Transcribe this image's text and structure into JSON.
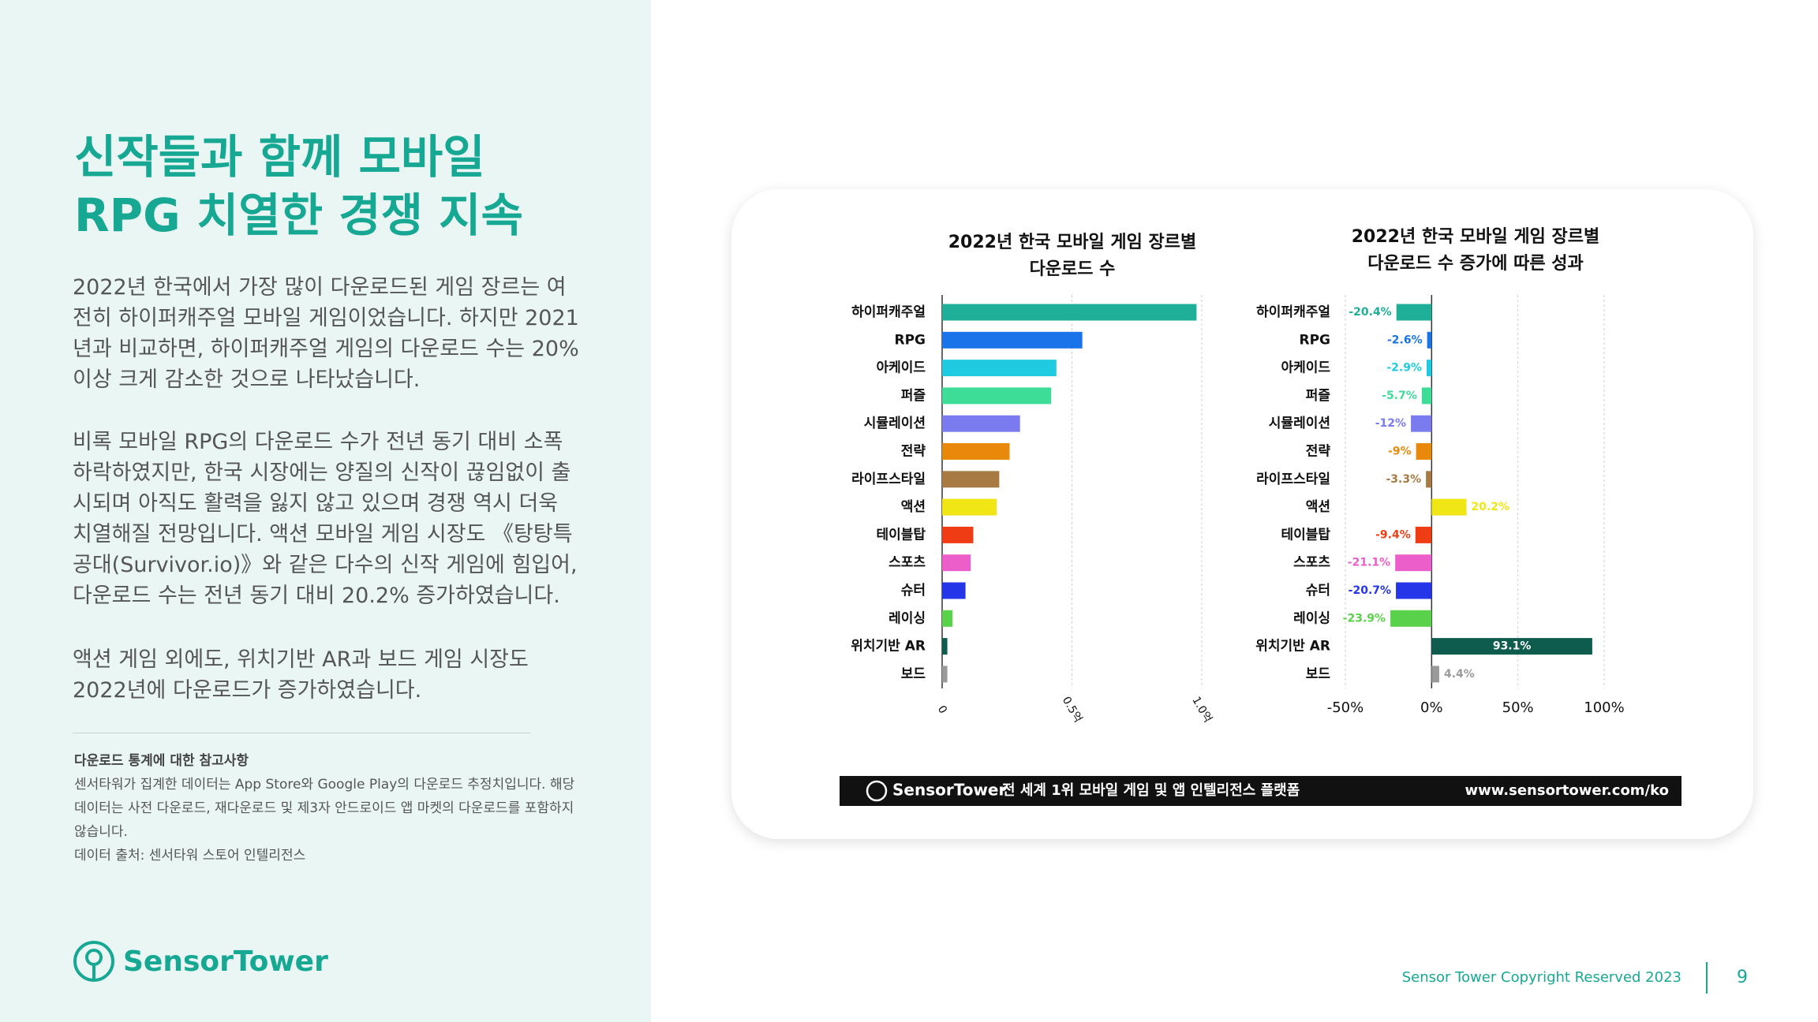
{
  "header": {
    "title": [
      "신작들과 함께 모바일",
      "RPG 치열한 경쟁 지속"
    ]
  },
  "paragraphs": [
    "2022년 한국에서 가장 많이 다운로드된 게임 장르는 여전히 하이퍼캐주얼 모바일 게임이었습니다. 하지만 2021년과 비교하면, 하이퍼캐주얼 게임의 다운로드 수는 20% 이상 크게 감소한 것으로 나타났습니다.",
    "비록 모바일 RPG의 다운로드 수가 전년 동기 대비 소폭 하락하였지만, 한국 시장에는 양질의 신작이 끊임없이 출시되며 아직도 활력을 잃지 않고 있으며 경쟁 역시 더욱 치열해질 전망입니다. 액션 모바일 게임 시장도 《탕탕특공대(Survivor.io)》와 같은 다수의 신작 게임에 힘입어, 다운로드 수는 전년 동기 대비 20.2% 증가하였습니다.",
    "액션 게임 외에도, 위치기반 AR과 보드 게임 시장도 2022년에 다운로드가 증가하였습니다."
  ],
  "notes": {
    "title": "다운로드 통계에 대한 참고사항",
    "text": "센서타워가 집계한 데이터는 App Store와 Google Play의 다운로드 추정치입니다. 해당 데이터는 사전 다운로드, 재다운로드 및 제3자 안드로이드 앱 마켓의 다운로드를 포함하지 않습니다.",
    "source": "데이터 출처: 센서타워 스토어 인텔리전스"
  },
  "logo": "SensorTower",
  "chart_data": [
    {
      "type": "bar",
      "orientation": "horizontal",
      "title": [
        "2022년 한국 모바일 게임 장르별",
        "다운로드 수"
      ],
      "categories": [
        "하이퍼캐주얼",
        "RPG",
        "아케이드",
        "퍼즐",
        "시뮬레이션",
        "전략",
        "라이프스타일",
        "액션",
        "테이블탑",
        "스포츠",
        "슈터",
        "레이싱",
        "위치기반 AR",
        "보드"
      ],
      "values": [
        0.98,
        0.54,
        0.44,
        0.42,
        0.3,
        0.26,
        0.22,
        0.21,
        0.12,
        0.11,
        0.09,
        0.04,
        0.02,
        0.02
      ],
      "colors": [
        "#1fae98",
        "#1a73e8",
        "#1ecbe1",
        "#3ddc97",
        "#7b7bf0",
        "#e8890c",
        "#a87a43",
        "#f0e615",
        "#f03c15",
        "#ec5ec9",
        "#2535e8",
        "#5ad14a",
        "#0d5c4e",
        "#9a9a9a"
      ],
      "xlim": [
        0,
        1
      ],
      "xticks": [
        0,
        {
          "value": 0.5,
          "label": "0.5억"
        },
        {
          "value": 1,
          "label": "1.0억"
        }
      ],
      "grid": true
    },
    {
      "type": "bar",
      "orientation": "horizontal",
      "title": [
        "2022년 한국 모바일 게임 장르별",
        "다운로드 수 증가에 따른 성과"
      ],
      "categories": [
        "하이퍼캐주얼",
        "RPG",
        "아케이드",
        "퍼즐",
        "시뮬레이션",
        "전략",
        "라이프스타일",
        "액션",
        "테이블탑",
        "스포츠",
        "슈터",
        "레이싱",
        "위치기반 AR",
        "보드"
      ],
      "values": [
        -20.4,
        -2.6,
        -2.9,
        -5.7,
        -12,
        -9,
        -3.3,
        20.2,
        -9.4,
        -21.1,
        -20.7,
        -23.9,
        93.1,
        4.4
      ],
      "value_labels": [
        "-20.4%",
        "-2.6%",
        "-2.9%",
        "-5.7%",
        "-12%",
        "-9%",
        "-3.3%",
        "20.2%",
        "-9.4%",
        "-21.1%",
        "-20.7%",
        "-23.9%",
        "93.1%",
        "4.4%"
      ],
      "colors": [
        "#1fae98",
        "#1a73e8",
        "#1ecbe1",
        "#3ddc97",
        "#7b7bf0",
        "#e8890c",
        "#a87a43",
        "#f0e615",
        "#f03c15",
        "#ec5ec9",
        "#2535e8",
        "#5ad14a",
        "#0d5c4e",
        "#9a9a9a"
      ],
      "xlim": [
        -50,
        100
      ],
      "xticks": [
        {
          "value": -50,
          "label": "-50%"
        },
        {
          "value": 0,
          "label": "0%"
        },
        {
          "value": 50,
          "label": "50%"
        },
        {
          "value": 100,
          "label": "100%"
        }
      ],
      "grid": true
    }
  ],
  "banner": {
    "brand": "SensorTower",
    "tagline": "전 세계 1위 모바일 게임 및 앱 인텔리전스 플랫폼",
    "url": "www.sensortower.com/ko"
  },
  "footer": {
    "copyright": "Sensor Tower Copyright Reserved 2023",
    "page": "9"
  }
}
